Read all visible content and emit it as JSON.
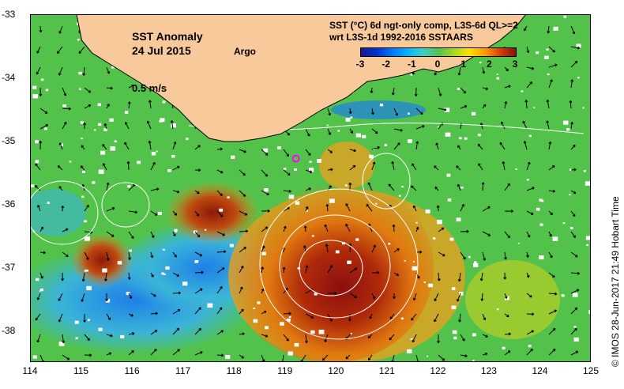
{
  "map": {
    "title": "SST Anomaly",
    "date": "24 Jul 2015",
    "argo_label": "Argo",
    "vector_scale_label": "0.5 m/s",
    "colorbar_title_line1": "SST (°C) 6d ngt-only comp, L3S-6d QL>=2",
    "colorbar_title_line2": "wrt L3S-1d 1992-2016 SSTAARS",
    "colorbar_ticks": [
      "-3",
      "-2",
      "-1",
      "0",
      "1",
      "2",
      "3"
    ],
    "colorbar_range": [
      -3,
      3
    ],
    "credit": "© IMOS 28-Jun-2017 21:49 Hobart Time",
    "x_ticks": [
      "114",
      "115",
      "116",
      "117",
      "118",
      "119",
      "120",
      "121",
      "122",
      "123",
      "124",
      "125"
    ],
    "y_ticks": [
      "-33",
      "-34",
      "-35",
      "-36",
      "-37",
      "-38"
    ],
    "lon_range": [
      114,
      125
    ],
    "lat_range": [
      -38.5,
      -33
    ],
    "argo_float": {
      "lon": 119.2,
      "lat": -35.27
    },
    "colors": {
      "land": "#f8c99a",
      "argo_marker": "#ff00ff",
      "anomaly_neutral": "#53c24a",
      "anomaly_warm": "#ff9a00",
      "anomaly_hot": "#8b0f0f",
      "anomaly_cool": "#00b4ff"
    },
    "coastline": [
      [
        114.9,
        -33
      ],
      [
        115.0,
        -33.4
      ],
      [
        115.2,
        -33.6
      ],
      [
        115.5,
        -33.75
      ],
      [
        115.9,
        -33.95
      ],
      [
        116.2,
        -34.1
      ],
      [
        116.5,
        -34.25
      ],
      [
        116.9,
        -34.5
      ],
      [
        117.2,
        -34.75
      ],
      [
        117.5,
        -34.95
      ],
      [
        117.8,
        -35.0
      ],
      [
        118.1,
        -35.0
      ],
      [
        118.5,
        -34.95
      ],
      [
        118.9,
        -34.88
      ],
      [
        119.3,
        -34.7
      ],
      [
        119.7,
        -34.5
      ],
      [
        120.2,
        -34.3
      ],
      [
        120.6,
        -34.05
      ],
      [
        121.0,
        -34.0
      ],
      [
        121.3,
        -33.95
      ],
      [
        121.7,
        -33.85
      ],
      [
        122.0,
        -33.9
      ],
      [
        122.4,
        -33.8
      ],
      [
        122.8,
        -33.6
      ],
      [
        123.2,
        -33.4
      ],
      [
        123.5,
        -33.2
      ],
      [
        123.7,
        -33
      ]
    ]
  }
}
